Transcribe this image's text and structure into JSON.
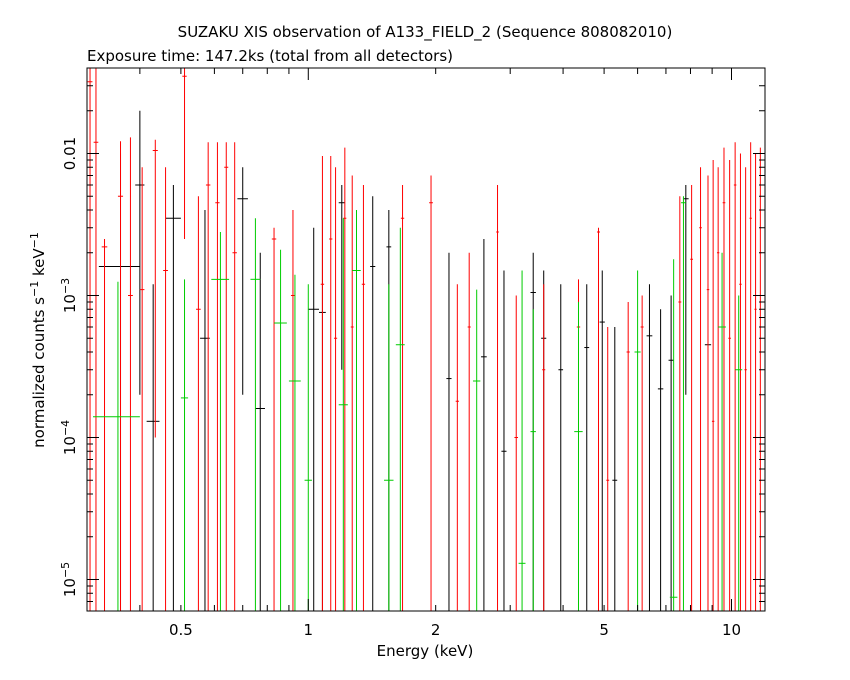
{
  "chart_data": {
    "type": "scatter",
    "title": "SUZAKU XIS observation of A133_FIELD_2 (Sequence 808082010)",
    "subtitle": "Exposure time: 147.2ks (total from all detectors)",
    "xlabel": "Energy (keV)",
    "ylabel": "normalized counts s^-1 keV^-1",
    "x_scale": "log",
    "y_scale": "log",
    "xlim": [
      0.3,
      12
    ],
    "ylim": [
      6e-06,
      0.04
    ],
    "x_ticks": [
      {
        "value": 0.5,
        "label": "0.5"
      },
      {
        "value": 1,
        "label": "1"
      },
      {
        "value": 2,
        "label": "2"
      },
      {
        "value": 5,
        "label": "5"
      },
      {
        "value": 10,
        "label": "10"
      }
    ],
    "y_ticks": [
      {
        "value": 1e-05,
        "base": "10",
        "exp": "−5"
      },
      {
        "value": 0.0001,
        "base": "10",
        "exp": "−4"
      },
      {
        "value": 0.001,
        "base": "10",
        "exp": "−3"
      },
      {
        "value": 0.01,
        "label": "0.01"
      }
    ],
    "series": [
      {
        "color": "#000000",
        "points": [
          {
            "x": 0.36,
            "xerr": 0.04,
            "y": 0.0016,
            "ylo": 6e-06,
            "yhi": 0.01
          },
          {
            "x": 0.4,
            "xerr": 0.01,
            "y": 0.006,
            "ylo": 0.0002,
            "yhi": 0.02
          },
          {
            "x": 0.43,
            "xerr": 0.015,
            "y": 0.00013,
            "ylo": 6e-06,
            "yhi": 0.0012
          },
          {
            "x": 0.48,
            "xerr": 0.02,
            "y": 0.0035,
            "ylo": 6e-06,
            "yhi": 0.006
          },
          {
            "x": 0.57,
            "xerr": 0.015,
            "y": 0.0005,
            "ylo": 6e-06,
            "yhi": 0.004
          },
          {
            "x": 0.7,
            "xerr": 0.02,
            "y": 0.0048,
            "ylo": 0.0002,
            "yhi": 0.008
          },
          {
            "x": 0.77,
            "xerr": 0.02,
            "y": 0.00016,
            "ylo": 6e-06,
            "yhi": 0.002
          },
          {
            "x": 1.03,
            "xerr": 0.03,
            "y": 0.0008,
            "ylo": 6e-06,
            "yhi": 0.003
          },
          {
            "x": 1.08,
            "xerr": 0.02,
            "y": 0.00076,
            "ylo": 6e-06,
            "yhi": 0.004
          },
          {
            "x": 1.2,
            "xerr": 0.02,
            "y": 0.0045,
            "ylo": 0.0003,
            "yhi": 0.006
          },
          {
            "x": 1.42,
            "xerr": 0.02,
            "y": 0.0016,
            "ylo": 6e-06,
            "yhi": 0.005
          },
          {
            "x": 1.55,
            "xerr": 0.02,
            "y": 0.0022,
            "ylo": 6e-06,
            "yhi": 0.004
          },
          {
            "x": 2.15,
            "xerr": 0.03,
            "y": 0.00026,
            "ylo": 6e-06,
            "yhi": 0.002
          },
          {
            "x": 2.6,
            "xerr": 0.04,
            "y": 0.00037,
            "ylo": 6e-06,
            "yhi": 0.0025
          },
          {
            "x": 2.9,
            "xerr": 0.04,
            "y": 8e-05,
            "ylo": 6e-06,
            "yhi": 0.0015
          },
          {
            "x": 3.4,
            "xerr": 0.05,
            "y": 0.00105,
            "ylo": 6e-06,
            "yhi": 0.002
          },
          {
            "x": 3.6,
            "xerr": 0.05,
            "y": 0.0005,
            "ylo": 6e-06,
            "yhi": 0.0015
          },
          {
            "x": 3.95,
            "xerr": 0.05,
            "y": 0.0003,
            "ylo": 6e-06,
            "yhi": 0.0012
          },
          {
            "x": 4.55,
            "xerr": 0.06,
            "y": 0.00043,
            "ylo": 6e-06,
            "yhi": 0.0012
          },
          {
            "x": 4.95,
            "xerr": 0.07,
            "y": 0.00065,
            "ylo": 6e-06,
            "yhi": 0.0015
          },
          {
            "x": 5.3,
            "xerr": 0.07,
            "y": 5e-05,
            "ylo": 6e-06,
            "yhi": 0.0006
          },
          {
            "x": 6.4,
            "xerr": 0.1,
            "y": 0.00052,
            "ylo": 6e-06,
            "yhi": 0.0012
          },
          {
            "x": 6.8,
            "xerr": 0.1,
            "y": 0.00022,
            "ylo": 6e-06,
            "yhi": 0.0008
          },
          {
            "x": 7.2,
            "xerr": 0.1,
            "y": 0.00035,
            "ylo": 6e-06,
            "yhi": 0.001
          },
          {
            "x": 7.8,
            "xerr": 0.12,
            "y": 0.0048,
            "ylo": 0.0002,
            "yhi": 0.006
          },
          {
            "x": 8.8,
            "xerr": 0.15,
            "y": 0.00045,
            "ylo": 6e-06,
            "yhi": 0.0012
          }
        ]
      },
      {
        "color": "#ff0000",
        "points": [
          {
            "x": 0.305,
            "xerr": 0.004,
            "y": 0.032,
            "ylo": 6e-06,
            "yhi": 0.04
          },
          {
            "x": 0.315,
            "xerr": 0.004,
            "y": 0.012,
            "ylo": 6e-06,
            "yhi": 0.04
          },
          {
            "x": 0.33,
            "xerr": 0.005,
            "y": 0.0022,
            "ylo": 6e-06,
            "yhi": 0.0025
          },
          {
            "x": 0.36,
            "xerr": 0.005,
            "y": 0.005,
            "ylo": 6e-06,
            "yhi": 0.0122
          },
          {
            "x": 0.38,
            "xerr": 0.005,
            "y": 0.001,
            "ylo": 6e-06,
            "yhi": 0.013
          },
          {
            "x": 0.405,
            "xerr": 0.005,
            "y": 0.0011,
            "ylo": 6e-06,
            "yhi": 0.008
          },
          {
            "x": 0.435,
            "xerr": 0.006,
            "y": 0.0105,
            "ylo": 0.0001,
            "yhi": 0.0125
          },
          {
            "x": 0.46,
            "xerr": 0.006,
            "y": 0.0015,
            "ylo": 6e-06,
            "yhi": 0.008
          },
          {
            "x": 0.51,
            "xerr": 0.006,
            "y": 0.035,
            "ylo": 0.0025,
            "yhi": 0.04
          },
          {
            "x": 0.55,
            "xerr": 0.007,
            "y": 0.0008,
            "ylo": 6e-06,
            "yhi": 0.005
          },
          {
            "x": 0.58,
            "xerr": 0.007,
            "y": 0.006,
            "ylo": 6e-06,
            "yhi": 0.012
          },
          {
            "x": 0.61,
            "xerr": 0.007,
            "y": 0.0045,
            "ylo": 6e-06,
            "yhi": 0.012
          },
          {
            "x": 0.64,
            "xerr": 0.007,
            "y": 0.008,
            "ylo": 6e-06,
            "yhi": 0.012
          },
          {
            "x": 0.67,
            "xerr": 0.008,
            "y": 0.002,
            "ylo": 6e-06,
            "yhi": 0.012
          },
          {
            "x": 0.83,
            "xerr": 0.01,
            "y": 0.0025,
            "ylo": 6e-06,
            "yhi": 0.003
          },
          {
            "x": 0.92,
            "xerr": 0.01,
            "y": 0.001,
            "ylo": 6e-06,
            "yhi": 0.004
          },
          {
            "x": 1.08,
            "xerr": 0.01,
            "y": 0.0012,
            "ylo": 6e-06,
            "yhi": 0.0096
          },
          {
            "x": 1.13,
            "xerr": 0.01,
            "y": 0.0025,
            "ylo": 6e-06,
            "yhi": 0.0096
          },
          {
            "x": 1.16,
            "xerr": 0.01,
            "y": 0.0005,
            "ylo": 6e-06,
            "yhi": 0.008
          },
          {
            "x": 1.22,
            "xerr": 0.01,
            "y": 0.0035,
            "ylo": 6e-06,
            "yhi": 0.011
          },
          {
            "x": 1.27,
            "xerr": 0.01,
            "y": 0.0006,
            "ylo": 6e-06,
            "yhi": 0.007
          },
          {
            "x": 1.35,
            "xerr": 0.012,
            "y": 0.0012,
            "ylo": 6e-06,
            "yhi": 0.006
          },
          {
            "x": 1.67,
            "xerr": 0.015,
            "y": 0.0035,
            "ylo": 6e-06,
            "yhi": 0.006
          },
          {
            "x": 1.95,
            "xerr": 0.02,
            "y": 0.0045,
            "ylo": 6e-06,
            "yhi": 0.007
          },
          {
            "x": 2.25,
            "xerr": 0.02,
            "y": 0.00018,
            "ylo": 6e-06,
            "yhi": 0.0012
          },
          {
            "x": 2.4,
            "xerr": 0.02,
            "y": 0.0006,
            "ylo": 6e-06,
            "yhi": 0.002
          },
          {
            "x": 2.8,
            "xerr": 0.02,
            "y": 0.0028,
            "ylo": 6e-06,
            "yhi": 0.006
          },
          {
            "x": 3.1,
            "xerr": 0.03,
            "y": 0.0001,
            "ylo": 6e-06,
            "yhi": 0.001
          },
          {
            "x": 3.6,
            "xerr": 0.03,
            "y": 0.0003,
            "ylo": 6e-06,
            "yhi": 0.0012
          },
          {
            "x": 4.35,
            "xerr": 0.04,
            "y": 0.0006,
            "ylo": 6e-06,
            "yhi": 0.0013
          },
          {
            "x": 4.85,
            "xerr": 0.04,
            "y": 0.0028,
            "ylo": 6e-06,
            "yhi": 0.003
          },
          {
            "x": 5.1,
            "xerr": 0.04,
            "y": 5e-05,
            "ylo": 6e-06,
            "yhi": 0.0006
          },
          {
            "x": 5.7,
            "xerr": 0.05,
            "y": 0.0004,
            "ylo": 6e-06,
            "yhi": 0.0009
          },
          {
            "x": 6.15,
            "xerr": 0.05,
            "y": 0.0006,
            "ylo": 6e-06,
            "yhi": 0.001
          },
          {
            "x": 7.55,
            "xerr": 0.06,
            "y": 0.0009,
            "ylo": 6e-06,
            "yhi": 0.005
          },
          {
            "x": 8.05,
            "xerr": 0.06,
            "y": 0.0018,
            "ylo": 6e-06,
            "yhi": 0.006
          },
          {
            "x": 8.45,
            "xerr": 0.06,
            "y": 0.003,
            "ylo": 6e-06,
            "yhi": 0.008
          },
          {
            "x": 8.8,
            "xerr": 0.06,
            "y": 0.0011,
            "ylo": 6e-06,
            "yhi": 0.007
          },
          {
            "x": 9.05,
            "xerr": 0.06,
            "y": 0.00013,
            "ylo": 6e-06,
            "yhi": 0.009
          },
          {
            "x": 9.3,
            "xerr": 0.06,
            "y": 0.002,
            "ylo": 6e-06,
            "yhi": 0.008
          },
          {
            "x": 9.6,
            "xerr": 0.07,
            "y": 0.0045,
            "ylo": 6e-06,
            "yhi": 0.011
          },
          {
            "x": 9.9,
            "xerr": 0.07,
            "y": 0.0005,
            "ylo": 6e-06,
            "yhi": 0.009
          },
          {
            "x": 10.2,
            "xerr": 0.07,
            "y": 0.006,
            "ylo": 6e-06,
            "yhi": 0.012
          },
          {
            "x": 10.5,
            "xerr": 0.07,
            "y": 0.0012,
            "ylo": 6e-06,
            "yhi": 0.01
          },
          {
            "x": 10.8,
            "xerr": 0.07,
            "y": 0.0003,
            "ylo": 6e-06,
            "yhi": 0.008
          },
          {
            "x": 11.1,
            "xerr": 0.07,
            "y": 0.0035,
            "ylo": 6e-06,
            "yhi": 0.012
          },
          {
            "x": 11.4,
            "xerr": 0.07,
            "y": 0.0008,
            "ylo": 6e-06,
            "yhi": 0.01
          },
          {
            "x": 11.7,
            "xerr": 0.07,
            "y": 0.002,
            "ylo": 6e-06,
            "yhi": 0.011
          }
        ]
      },
      {
        "color": "#00cc00",
        "points": [
          {
            "x": 0.355,
            "xerr": 0.045,
            "y": 0.00014,
            "ylo": 6e-06,
            "yhi": 0.00125
          },
          {
            "x": 0.51,
            "xerr": 0.01,
            "y": 0.00019,
            "ylo": 6e-06,
            "yhi": 0.0013
          },
          {
            "x": 0.62,
            "xerr": 0.03,
            "y": 0.0013,
            "ylo": 6e-06,
            "yhi": 0.0028
          },
          {
            "x": 0.75,
            "xerr": 0.02,
            "y": 0.0013,
            "ylo": 6e-06,
            "yhi": 0.0035
          },
          {
            "x": 0.86,
            "xerr": 0.03,
            "y": 0.00064,
            "ylo": 6e-06,
            "yhi": 0.0021
          },
          {
            "x": 0.93,
            "xerr": 0.03,
            "y": 0.00025,
            "ylo": 6e-06,
            "yhi": 0.0014
          },
          {
            "x": 1.0,
            "xerr": 0.02,
            "y": 5e-05,
            "ylo": 6e-06,
            "yhi": 0.0012
          },
          {
            "x": 1.21,
            "xerr": 0.03,
            "y": 0.00017,
            "ylo": 6e-06,
            "yhi": 0.0035
          },
          {
            "x": 1.3,
            "xerr": 0.03,
            "y": 0.0015,
            "ylo": 6e-06,
            "yhi": 0.004
          },
          {
            "x": 1.55,
            "xerr": 0.04,
            "y": 5e-05,
            "ylo": 6e-06,
            "yhi": 0.0012
          },
          {
            "x": 1.65,
            "xerr": 0.04,
            "y": 0.00045,
            "ylo": 6e-06,
            "yhi": 0.003
          },
          {
            "x": 2.5,
            "xerr": 0.05,
            "y": 0.00025,
            "ylo": 6e-06,
            "yhi": 0.0011
          },
          {
            "x": 3.2,
            "xerr": 0.06,
            "y": 1.3e-05,
            "ylo": 6e-06,
            "yhi": 0.0015
          },
          {
            "x": 3.4,
            "xerr": 0.05,
            "y": 0.00011,
            "ylo": 6e-06,
            "yhi": 0.0008
          },
          {
            "x": 4.35,
            "xerr": 0.1,
            "y": 0.00011,
            "ylo": 6e-06,
            "yhi": 0.0009
          },
          {
            "x": 6.0,
            "xerr": 0.1,
            "y": 0.0004,
            "ylo": 6e-06,
            "yhi": 0.0015
          },
          {
            "x": 7.3,
            "xerr": 0.15,
            "y": 7.5e-06,
            "ylo": 6e-06,
            "yhi": 0.0018
          },
          {
            "x": 7.7,
            "xerr": 0.1,
            "y": 0.0045,
            "ylo": 6e-06,
            "yhi": 0.005
          },
          {
            "x": 9.5,
            "xerr": 0.2,
            "y": 0.0006,
            "ylo": 6e-06,
            "yhi": 0.002
          },
          {
            "x": 10.4,
            "xerr": 0.2,
            "y": 0.0003,
            "ylo": 6e-06,
            "yhi": 0.001
          }
        ]
      }
    ]
  }
}
